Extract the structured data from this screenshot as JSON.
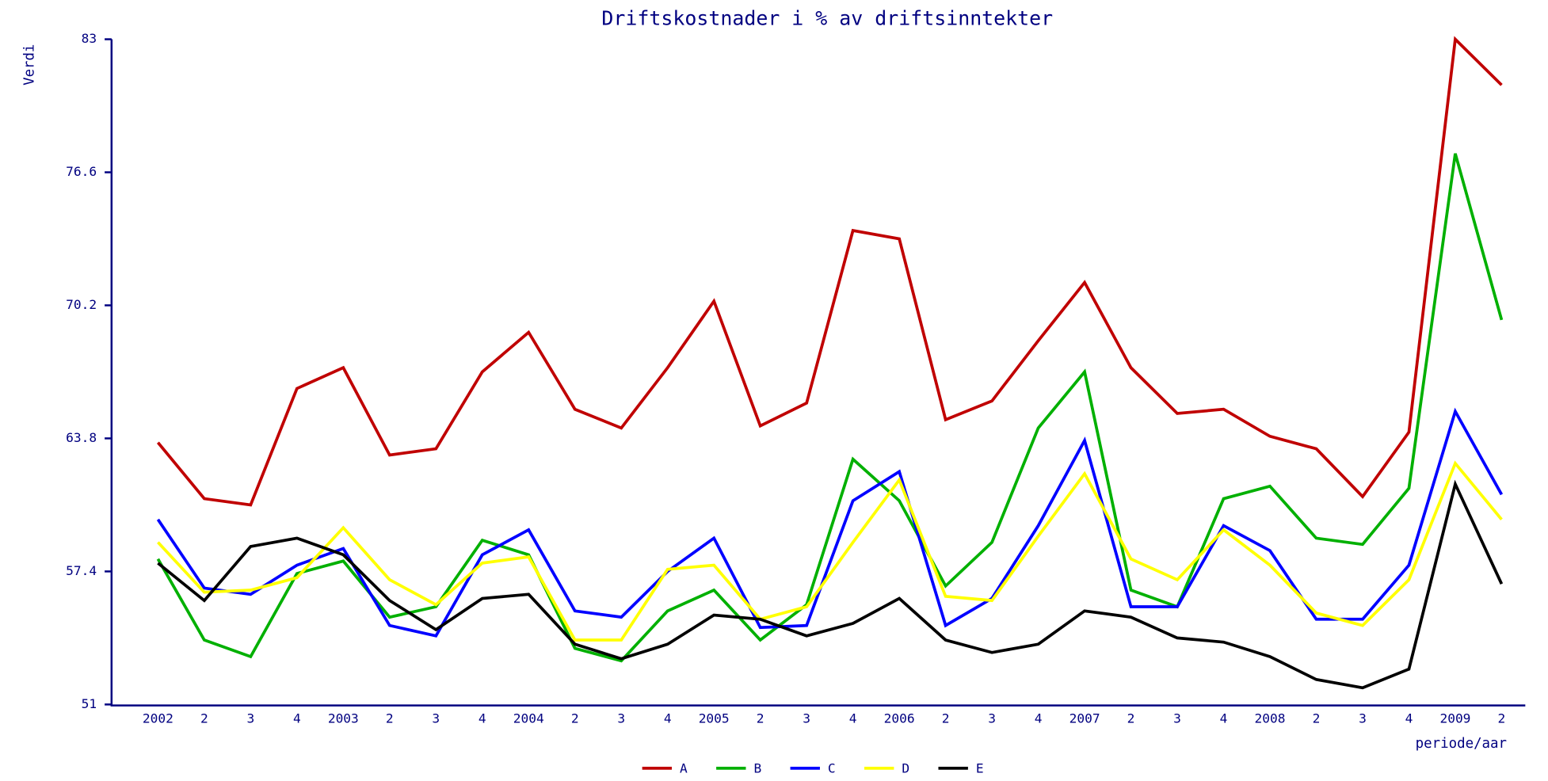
{
  "chart_data": {
    "type": "line",
    "title": "Driftskostnader i % av driftsinntekter",
    "y_label": "Verdi",
    "x_label": "periode/aar",
    "categories": [
      "2002",
      "2",
      "3",
      "4",
      "2003",
      "2",
      "3",
      "4",
      "2004",
      "2",
      "3",
      "4",
      "2005",
      "2",
      "3",
      "4",
      "2006",
      "2",
      "3",
      "4",
      "2007",
      "2",
      "3",
      "4",
      "2008",
      "2",
      "3",
      "4",
      "2009",
      "2"
    ],
    "ylim": [
      51,
      83
    ],
    "yticks": [
      51,
      57.4,
      63.8,
      70.2,
      76.6,
      83
    ],
    "grid": false,
    "legend": "bottom",
    "series": [
      {
        "name": "A",
        "color": "#c00000",
        "values": [
          63.6,
          60.9,
          60.6,
          66.2,
          67.2,
          63.0,
          63.3,
          67.0,
          68.9,
          65.2,
          64.3,
          67.2,
          70.4,
          64.4,
          65.5,
          73.8,
          73.4,
          64.7,
          65.6,
          68.5,
          71.3,
          67.2,
          65.0,
          65.2,
          63.9,
          63.3,
          61.0,
          64.1,
          83.0,
          80.8
        ]
      },
      {
        "name": "B",
        "color": "#00b000",
        "values": [
          58.0,
          54.1,
          53.3,
          57.3,
          57.9,
          55.2,
          55.7,
          58.9,
          58.2,
          53.7,
          53.1,
          55.5,
          56.5,
          54.1,
          55.8,
          62.8,
          60.8,
          56.7,
          58.8,
          64.3,
          67.0,
          56.5,
          55.7,
          60.9,
          61.5,
          59.0,
          58.7,
          61.4,
          77.5,
          69.5
        ]
      },
      {
        "name": "C",
        "color": "#0000ff",
        "values": [
          59.9,
          56.6,
          56.3,
          57.7,
          58.5,
          54.8,
          54.3,
          58.2,
          59.4,
          55.5,
          55.2,
          57.4,
          59.0,
          54.7,
          54.8,
          60.8,
          62.2,
          54.8,
          56.1,
          59.6,
          63.7,
          55.7,
          55.7,
          59.6,
          58.4,
          55.1,
          55.1,
          57.7,
          65.1,
          61.1
        ]
      },
      {
        "name": "D",
        "color": "#ffff00",
        "values": [
          58.8,
          56.4,
          56.5,
          57.1,
          59.5,
          57.0,
          55.8,
          57.8,
          58.1,
          54.1,
          54.1,
          57.5,
          57.7,
          55.1,
          55.7,
          58.8,
          61.8,
          56.2,
          56.0,
          59.1,
          62.1,
          58.0,
          57.0,
          59.4,
          57.7,
          55.4,
          54.8,
          57.0,
          62.6,
          59.9
        ]
      },
      {
        "name": "E",
        "color": "#000000",
        "values": [
          57.8,
          56.0,
          58.6,
          59.0,
          58.2,
          56.0,
          54.6,
          56.1,
          56.3,
          53.9,
          53.2,
          53.9,
          55.3,
          55.1,
          54.3,
          54.9,
          56.1,
          54.1,
          53.5,
          53.9,
          55.5,
          55.2,
          54.2,
          54.0,
          53.3,
          52.2,
          51.8,
          52.7,
          61.6,
          56.8
        ]
      }
    ]
  }
}
